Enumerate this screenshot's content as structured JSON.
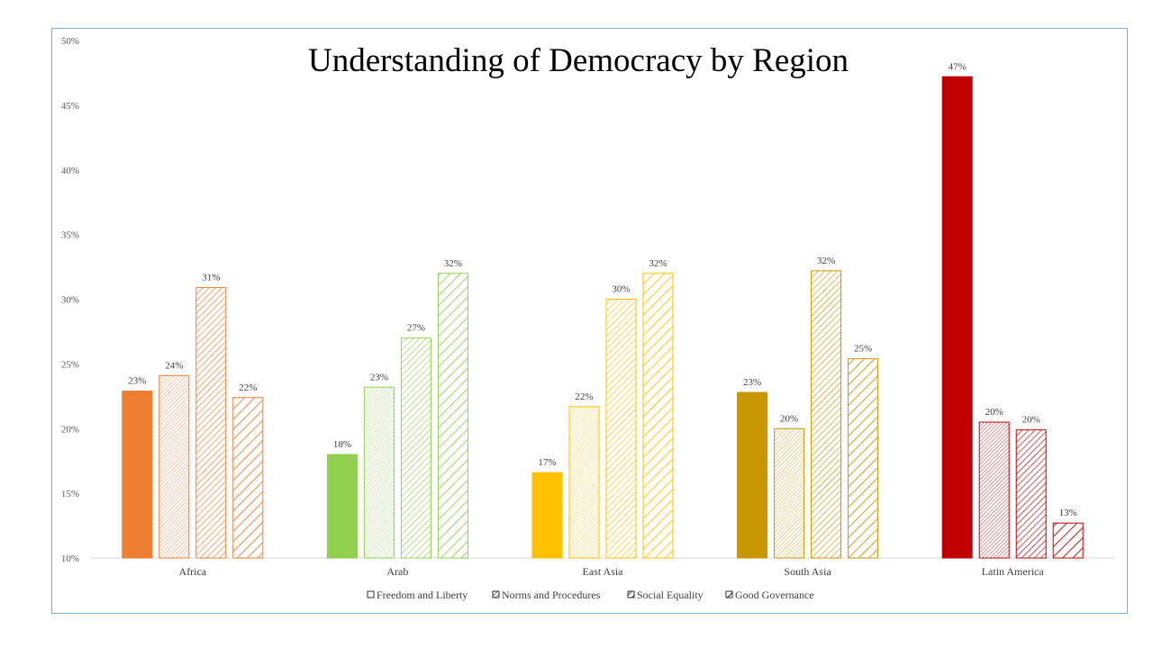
{
  "chart_data": {
    "type": "bar",
    "title": "Understanding of Democracy by Region",
    "xlabel": "",
    "ylabel": "",
    "ylim": [
      10,
      50
    ],
    "y_ticks": [
      "10%",
      "15%",
      "20%",
      "25%",
      "30%",
      "35%",
      "40%",
      "45%",
      "50%"
    ],
    "grid": false,
    "legend_position": "bottom",
    "categories": [
      "Africa",
      "Arab",
      "East Asia",
      "South Asia",
      "Latin America"
    ],
    "series": [
      {
        "name": "Freedom and Liberty",
        "pattern": "solid",
        "values": [
          22.9,
          18.0,
          16.6,
          22.8,
          47.2
        ],
        "labels": [
          "23%",
          "18%",
          "17%",
          "23%",
          "47%"
        ]
      },
      {
        "name": "Norms and Procedures",
        "pattern": "fine-hatch",
        "values": [
          24.1,
          23.2,
          21.7,
          20.0,
          20.5
        ],
        "labels": [
          "24%",
          "23%",
          "22%",
          "20%",
          "20%"
        ]
      },
      {
        "name": "Social Equality",
        "pattern": "medium-hatch",
        "values": [
          30.9,
          27.0,
          30.0,
          32.2,
          19.9
        ],
        "labels": [
          "31%",
          "27%",
          "30%",
          "32%",
          "20%"
        ]
      },
      {
        "name": "Good Governance",
        "pattern": "wide-hatch",
        "values": [
          22.4,
          32.0,
          32.0,
          25.4,
          12.7
        ],
        "labels": [
          "22%",
          "32%",
          "32%",
          "25%",
          "13%"
        ]
      }
    ],
    "category_colors": [
      "#ed7d31",
      "#92d050",
      "#ffc000",
      "#c89600",
      "#c00000"
    ],
    "colors_note": "each region uses its own color; series differ by hatch pattern"
  }
}
